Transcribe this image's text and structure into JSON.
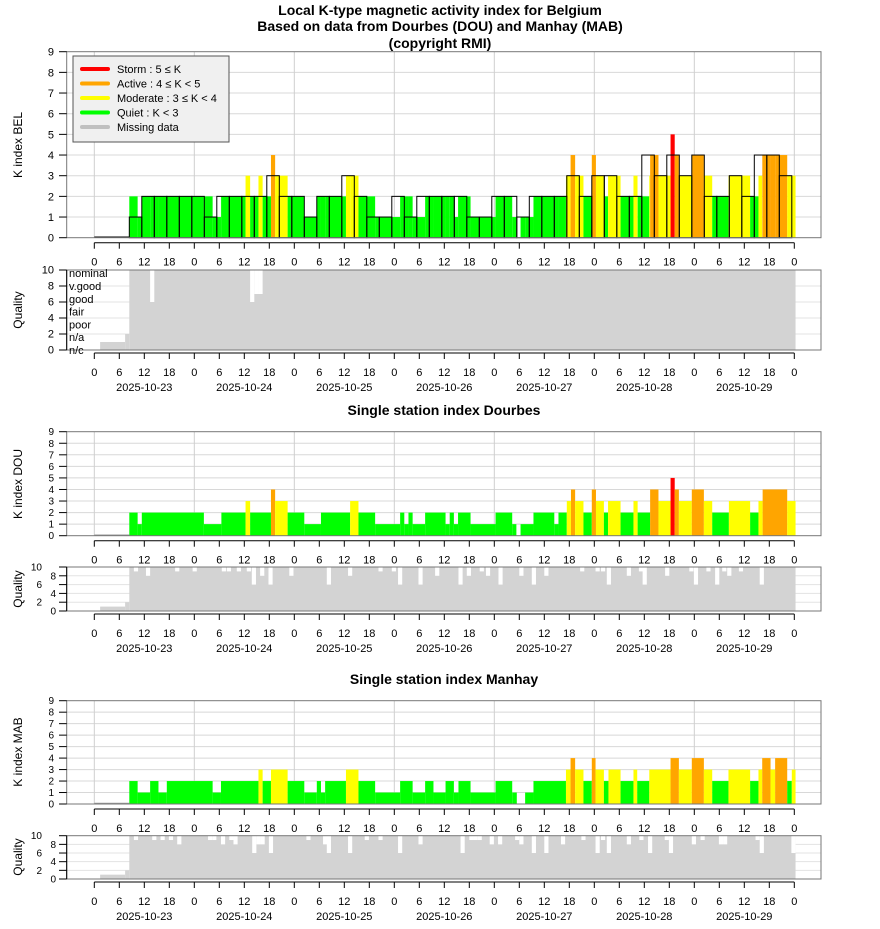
{
  "title": {
    "line1": "Local K-type magnetic activity index for Belgium",
    "line2": "Based on data from Dourbes (DOU) and Manhay (MAB)",
    "line3": "(copyright RMI)"
  },
  "legend": [
    {
      "label": "Storm : 5 ≤ K",
      "color": "#ff0000"
    },
    {
      "label": "Active : 4 ≤ K < 5",
      "color": "#ffa500"
    },
    {
      "label": "Moderate : 3 ≤ K < 4",
      "color": "#ffff00"
    },
    {
      "label": "Quiet : K < 3",
      "color": "#00ff00"
    },
    {
      "label": "Missing data",
      "color": "#c0c0c0"
    }
  ],
  "colors": {
    "storm": "#ff0000",
    "active": "#ffa500",
    "moderate": "#ffff00",
    "quiet": "#00ff00",
    "quality": "#d3d3d3"
  },
  "x_axis": {
    "hour_ticks": [
      "0",
      "6",
      "12",
      "18"
    ],
    "final_tick": "0",
    "dates": [
      "2025-10-23",
      "2025-10-24",
      "2025-10-25",
      "2025-10-26",
      "2025-10-27",
      "2025-10-28",
      "2025-10-29"
    ],
    "range_hours": [
      0,
      168
    ]
  },
  "quality_axis": {
    "label": "Quality",
    "ticks": [
      "0",
      "2",
      "4",
      "6",
      "8",
      "10"
    ],
    "levels": [
      "nominal",
      "v.good",
      "good",
      "fair",
      "poor",
      "n/a",
      "n/c"
    ]
  },
  "chart_data": [
    {
      "type": "bar",
      "title": "",
      "ylabel": "K index BEL",
      "ylim": [
        0,
        9
      ],
      "missing_until_hour": 8.4,
      "fine_from_stations": [
        "DOU",
        "MAB"
      ],
      "boxes": {
        "start_hour": 8.4,
        "width_hours": 3,
        "values": [
          1,
          2,
          2,
          2,
          2,
          2,
          1,
          2,
          2,
          2,
          2,
          3,
          2,
          2,
          1,
          2,
          2,
          3,
          2,
          1,
          1,
          2,
          1,
          2,
          2,
          2,
          2,
          1,
          1,
          2,
          2,
          1,
          2,
          2,
          2,
          3,
          2,
          3,
          3,
          2,
          2,
          4,
          3,
          4,
          3,
          4,
          2,
          2,
          3,
          2,
          4,
          4,
          3
        ]
      },
      "quality": {
        "initial": [
          [
            0,
            0
          ],
          [
            1.4,
            1
          ],
          [
            7.4,
            2
          ]
        ],
        "full_from_hour": 8.4,
        "end_hour": 168.3,
        "dips": [
          [
            13.4,
            6
          ],
          [
            37.4,
            6
          ],
          [
            38.4,
            7
          ],
          [
            39.4,
            7
          ]
        ]
      }
    },
    {
      "type": "bar",
      "station": "DOU",
      "title": "Single station index Dourbes",
      "ylabel": "K index DOU",
      "ylim": [
        0,
        9
      ],
      "missing_until_hour": 8.4,
      "end_hour": 168.3,
      "runs": [
        [
          8.4,
          2
        ],
        [
          10.4,
          1
        ],
        [
          11.4,
          2
        ],
        [
          26.3,
          1
        ],
        [
          30.5,
          2
        ],
        [
          36.3,
          3
        ],
        [
          37.4,
          2
        ],
        [
          42.4,
          4
        ],
        [
          43.4,
          3
        ],
        [
          46.4,
          2
        ],
        [
          50.4,
          1
        ],
        [
          54.4,
          2
        ],
        [
          61.4,
          3
        ],
        [
          63.4,
          2
        ],
        [
          67.4,
          1
        ],
        [
          73.4,
          2
        ],
        [
          74.4,
          1
        ],
        [
          75.4,
          2
        ],
        [
          76.4,
          1
        ],
        [
          79.4,
          2
        ],
        [
          84.3,
          1
        ],
        [
          85.3,
          2
        ],
        [
          86.3,
          1
        ],
        [
          87.3,
          2
        ],
        [
          90.3,
          1
        ],
        [
          96.3,
          2
        ],
        [
          100.3,
          1
        ],
        [
          101.3,
          0
        ],
        [
          102.3,
          1
        ],
        [
          105.4,
          2
        ],
        [
          110.4,
          1
        ],
        [
          111.4,
          2
        ],
        [
          113.4,
          3
        ],
        [
          114.4,
          4
        ],
        [
          115.4,
          3
        ],
        [
          117.4,
          2
        ],
        [
          119.4,
          4
        ],
        [
          120.4,
          3
        ],
        [
          122.3,
          2
        ],
        [
          123.3,
          3
        ],
        [
          126.3,
          2
        ],
        [
          129.4,
          3
        ],
        [
          130.4,
          2
        ],
        [
          133.4,
          4
        ],
        [
          135.4,
          3
        ],
        [
          138.3,
          5
        ],
        [
          139.3,
          4
        ],
        [
          140.3,
          3
        ],
        [
          143.4,
          4
        ],
        [
          146.3,
          3
        ],
        [
          148.3,
          2
        ],
        [
          152.3,
          3
        ],
        [
          157.4,
          2
        ],
        [
          159.4,
          3
        ],
        [
          160.4,
          4
        ],
        [
          166.3,
          3
        ]
      ],
      "quality": {
        "initial": [
          [
            0,
            0
          ],
          [
            1.4,
            1
          ],
          [
            7.4,
            2
          ]
        ],
        "full_from_hour": 8.4,
        "end_hour": 168.3,
        "dips": [
          [
            9.5,
            9
          ],
          [
            12.4,
            8
          ],
          [
            19.4,
            9
          ],
          [
            23.6,
            9
          ],
          [
            30.6,
            9
          ],
          [
            31.8,
            9
          ],
          [
            34.2,
            9
          ],
          [
            36.6,
            9
          ],
          [
            37.8,
            6
          ],
          [
            39.8,
            8
          ],
          [
            41.8,
            6
          ],
          [
            46.8,
            8
          ],
          [
            55.8,
            6
          ],
          [
            60.9,
            8
          ],
          [
            68.2,
            9
          ],
          [
            71.4,
            9
          ],
          [
            72.9,
            6
          ],
          [
            77.8,
            6
          ],
          [
            81.8,
            8
          ],
          [
            87.4,
            6
          ],
          [
            89.4,
            8
          ],
          [
            92.5,
            9
          ],
          [
            94,
            8
          ],
          [
            97,
            6
          ],
          [
            102,
            8
          ],
          [
            105,
            6
          ],
          [
            108,
            8
          ],
          [
            116.6,
            9
          ],
          [
            120.3,
            9
          ],
          [
            121.6,
            9
          ],
          [
            123,
            6
          ],
          [
            127.8,
            8
          ],
          [
            130.7,
            9
          ],
          [
            131.6,
            6
          ],
          [
            137,
            8
          ],
          [
            142.8,
            9
          ],
          [
            143.9,
            6
          ],
          [
            146.9,
            9
          ],
          [
            149,
            6
          ],
          [
            150.7,
            9
          ],
          [
            151.9,
            8
          ],
          [
            154.7,
            9
          ],
          [
            159.7,
            6
          ]
        ]
      }
    },
    {
      "type": "bar",
      "station": "MAB",
      "title": "Single station index Manhay",
      "ylabel": "K index MAB",
      "ylim": [
        0,
        9
      ],
      "missing_until_hour": 8.4,
      "end_hour": 168.3,
      "runs": [
        [
          8.4,
          2
        ],
        [
          10.4,
          1
        ],
        [
          13.4,
          2
        ],
        [
          15.4,
          1
        ],
        [
          17.4,
          2
        ],
        [
          28.4,
          1
        ],
        [
          30.4,
          2
        ],
        [
          39.4,
          3
        ],
        [
          40.4,
          2
        ],
        [
          42.4,
          3
        ],
        [
          46.4,
          2
        ],
        [
          50.4,
          1
        ],
        [
          53.4,
          2
        ],
        [
          54.4,
          1
        ],
        [
          55.4,
          2
        ],
        [
          60.4,
          3
        ],
        [
          63.4,
          2
        ],
        [
          67.4,
          1
        ],
        [
          73.4,
          2
        ],
        [
          76.4,
          1
        ],
        [
          79.4,
          2
        ],
        [
          81.4,
          1
        ],
        [
          84.3,
          2
        ],
        [
          86.3,
          1
        ],
        [
          87.4,
          2
        ],
        [
          90.3,
          1
        ],
        [
          96.3,
          2
        ],
        [
          100.3,
          1
        ],
        [
          101.4,
          0
        ],
        [
          103.4,
          1
        ],
        [
          105.4,
          2
        ],
        [
          113.2,
          3
        ],
        [
          114.3,
          4
        ],
        [
          115.4,
          3
        ],
        [
          117.4,
          2
        ],
        [
          119.4,
          4
        ],
        [
          120.3,
          3
        ],
        [
          122.3,
          2
        ],
        [
          123.4,
          3
        ],
        [
          126.3,
          2
        ],
        [
          129.4,
          3
        ],
        [
          130.3,
          2
        ],
        [
          133.2,
          3
        ],
        [
          138.3,
          4
        ],
        [
          140.3,
          3
        ],
        [
          143.4,
          4
        ],
        [
          146.3,
          3
        ],
        [
          148.3,
          2
        ],
        [
          152.2,
          3
        ],
        [
          157.4,
          2
        ],
        [
          159.4,
          3
        ],
        [
          160.3,
          4
        ],
        [
          162.3,
          3
        ],
        [
          163.4,
          4
        ],
        [
          166.3,
          2
        ],
        [
          167.4,
          3
        ]
      ],
      "quality": {
        "initial": [
          [
            0,
            0
          ],
          [
            1.4,
            1
          ],
          [
            7.4,
            2
          ]
        ],
        "full_from_hour": 8.4,
        "end_hour": 168.3,
        "dips": [
          [
            9.5,
            9
          ],
          [
            13.9,
            9
          ],
          [
            15.9,
            9
          ],
          [
            17.9,
            9
          ],
          [
            19.9,
            8
          ],
          [
            27.3,
            9
          ],
          [
            28.3,
            9
          ],
          [
            30.4,
            8
          ],
          [
            32.4,
            9
          ],
          [
            33.4,
            8
          ],
          [
            37.9,
            6
          ],
          [
            38.9,
            8
          ],
          [
            39.9,
            8
          ],
          [
            41.9,
            6
          ],
          [
            50.9,
            9
          ],
          [
            54.9,
            8
          ],
          [
            55.8,
            6
          ],
          [
            60.9,
            6
          ],
          [
            64.9,
            9
          ],
          [
            68.2,
            9
          ],
          [
            72.9,
            6
          ],
          [
            77.8,
            8
          ],
          [
            87.9,
            6
          ],
          [
            90,
            9
          ],
          [
            91,
            9
          ],
          [
            92,
            9
          ],
          [
            94.9,
            8
          ],
          [
            96.9,
            8
          ],
          [
            101,
            9
          ],
          [
            102,
            8
          ],
          [
            105,
            6
          ],
          [
            108,
            6
          ],
          [
            112,
            8
          ],
          [
            116.9,
            9
          ],
          [
            120.3,
            6
          ],
          [
            121.6,
            9
          ],
          [
            123,
            6
          ],
          [
            127.8,
            8
          ],
          [
            130.8,
            9
          ],
          [
            132.9,
            6
          ],
          [
            136.9,
            9
          ],
          [
            137.9,
            6
          ],
          [
            143.4,
            8
          ],
          [
            145.5,
            9
          ],
          [
            149.9,
            8
          ],
          [
            150.9,
            8
          ],
          [
            158.7,
            9
          ],
          [
            159.7,
            6
          ],
          [
            167.3,
            6
          ]
        ]
      }
    }
  ]
}
